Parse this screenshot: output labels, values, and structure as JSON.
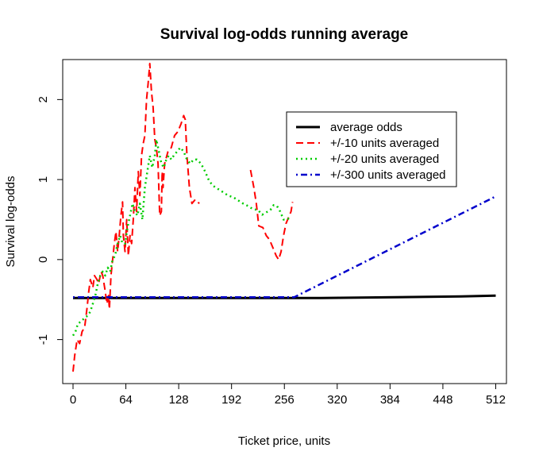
{
  "chart_data": {
    "type": "line",
    "title": "Survival log-odds running average",
    "xlabel": "Ticket price, units",
    "ylabel": "Survival log-odds",
    "xlim": [
      -12.5,
      525
    ],
    "ylim": [
      -1.55,
      2.5
    ],
    "x_ticks": [
      0,
      64,
      128,
      192,
      256,
      320,
      384,
      448,
      512
    ],
    "y_ticks": [
      -1,
      0,
      1,
      2
    ],
    "grid": false,
    "legend_position": "top-right",
    "series": [
      {
        "name": "average odds",
        "color": "#000000",
        "dash": "solid",
        "width": 3,
        "points": [
          [
            0,
            -0.48
          ],
          [
            300,
            -0.48
          ],
          [
            390,
            -0.47
          ],
          [
            470,
            -0.46
          ],
          [
            512,
            -0.45
          ]
        ]
      },
      {
        "name": "+/-10 units averaged",
        "color": "#ff0000",
        "dash": "dashed",
        "width": 2,
        "segments": [
          [
            [
              0,
              -1.4
            ],
            [
              2,
              -1.2
            ],
            [
              5,
              -1.0
            ],
            [
              8,
              -1.05
            ],
            [
              11,
              -0.9
            ],
            [
              14,
              -0.85
            ],
            [
              17,
              -0.6
            ],
            [
              19,
              -0.4
            ],
            [
              21,
              -0.25
            ],
            [
              24,
              -0.35
            ],
            [
              26,
              -0.2
            ],
            [
              29,
              -0.25
            ],
            [
              31,
              -0.3
            ],
            [
              34,
              -0.15
            ],
            [
              36,
              -0.2
            ],
            [
              39,
              -0.4
            ],
            [
              41,
              -0.55
            ],
            [
              43,
              -0.45
            ],
            [
              44,
              -0.62
            ],
            [
              46,
              -0.2
            ],
            [
              48,
              0.0
            ],
            [
              50,
              0.2
            ],
            [
              52,
              0.35
            ],
            [
              54,
              0.1
            ],
            [
              56,
              0.3
            ],
            [
              58,
              0.55
            ],
            [
              60,
              0.72
            ],
            [
              61,
              0.3
            ],
            [
              63,
              0.1
            ],
            [
              65,
              0.5
            ],
            [
              67,
              0.05
            ],
            [
              69,
              0.3
            ],
            [
              71,
              0.2
            ],
            [
              73,
              0.5
            ],
            [
              75,
              0.9
            ],
            [
              77,
              0.6
            ],
            [
              79,
              1.1
            ],
            [
              81,
              0.8
            ],
            [
              83,
              1.3
            ],
            [
              85,
              1.45
            ],
            [
              87,
              1.55
            ],
            [
              89,
              2.0
            ],
            [
              91,
              2.2
            ],
            [
              93,
              2.45
            ],
            [
              95,
              2.1
            ],
            [
              97,
              1.9
            ],
            [
              99,
              1.5
            ],
            [
              101,
              1.4
            ],
            [
              103,
              1.2
            ],
            [
              105,
              0.55
            ],
            [
              107,
              0.6
            ],
            [
              108,
              1.1
            ],
            [
              109,
              0.9
            ],
            [
              111,
              1.2
            ],
            [
              115,
              1.35
            ],
            [
              119,
              1.4
            ],
            [
              123,
              1.55
            ],
            [
              127,
              1.6
            ],
            [
              131,
              1.7
            ],
            [
              134,
              1.8
            ],
            [
              136,
              1.75
            ],
            [
              138,
              1.3
            ],
            [
              141,
              0.9
            ],
            [
              144,
              0.7
            ],
            [
              148,
              0.75
            ],
            [
              153,
              0.7
            ]
          ],
          [
            [
              215,
              1.12
            ],
            [
              219,
              0.9
            ],
            [
              222,
              0.7
            ],
            [
              225,
              0.42
            ],
            [
              230,
              0.4
            ],
            [
              234,
              0.3
            ],
            [
              238,
              0.25
            ],
            [
              242,
              0.15
            ],
            [
              246,
              0.05
            ],
            [
              249,
              0.0
            ],
            [
              252,
              0.1
            ],
            [
              255,
              0.3
            ],
            [
              258,
              0.45
            ],
            [
              262,
              0.55
            ],
            [
              264,
              0.6
            ],
            [
              266,
              0.72
            ]
          ]
        ]
      },
      {
        "name": "+/-20 units averaged",
        "color": "#00cc00",
        "dash": "dotted",
        "width": 2.5,
        "segments": [
          [
            [
              0,
              -0.95
            ],
            [
              3,
              -0.9
            ],
            [
              6,
              -0.8
            ],
            [
              9,
              -0.78
            ],
            [
              12,
              -0.75
            ],
            [
              15,
              -0.72
            ],
            [
              18,
              -0.7
            ],
            [
              21,
              -0.65
            ],
            [
              24,
              -0.55
            ],
            [
              27,
              -0.45
            ],
            [
              30,
              -0.3
            ],
            [
              33,
              -0.2
            ],
            [
              36,
              -0.15
            ],
            [
              39,
              -0.2
            ],
            [
              42,
              -0.1
            ],
            [
              45,
              -0.15
            ],
            [
              48,
              0.0
            ],
            [
              51,
              0.05
            ],
            [
              54,
              0.2
            ],
            [
              57,
              0.3
            ],
            [
              60,
              0.2
            ],
            [
              63,
              0.2
            ],
            [
              66,
              0.4
            ],
            [
              69,
              0.55
            ],
            [
              72,
              0.7
            ],
            [
              75,
              0.6
            ],
            [
              78,
              0.55
            ],
            [
              81,
              0.7
            ],
            [
              84,
              0.5
            ],
            [
              87,
              0.9
            ],
            [
              90,
              1.1
            ],
            [
              93,
              1.3
            ],
            [
              96,
              1.15
            ],
            [
              99,
              1.3
            ],
            [
              101,
              1.5
            ],
            [
              104,
              1.35
            ],
            [
              107,
              1.2
            ],
            [
              110,
              1.15
            ],
            [
              113,
              1.25
            ],
            [
              116,
              1.3
            ],
            [
              119,
              1.25
            ],
            [
              122,
              1.3
            ],
            [
              126,
              1.35
            ],
            [
              130,
              1.4
            ],
            [
              134,
              1.35
            ],
            [
              138,
              1.25
            ],
            [
              142,
              1.2
            ],
            [
              146,
              1.25
            ],
            [
              150,
              1.25
            ],
            [
              155,
              1.2
            ],
            [
              160,
              1.1
            ],
            [
              165,
              0.98
            ],
            [
              170,
              0.92
            ],
            [
              176,
              0.88
            ],
            [
              182,
              0.84
            ],
            [
              188,
              0.8
            ],
            [
              194,
              0.78
            ],
            [
              200,
              0.74
            ],
            [
              206,
              0.7
            ],
            [
              212,
              0.67
            ],
            [
              218,
              0.63
            ],
            [
              224,
              0.62
            ],
            [
              229,
              0.56
            ],
            [
              234,
              0.59
            ],
            [
              239,
              0.62
            ],
            [
              243,
              0.68
            ],
            [
              247,
              0.67
            ],
            [
              251,
              0.6
            ],
            [
              255,
              0.5
            ],
            [
              259,
              0.5
            ],
            [
              262,
              0.52
            ]
          ]
        ]
      },
      {
        "name": "+/-300 units averaged",
        "color": "#0000cc",
        "dash": "dashdot",
        "width": 2.5,
        "points": [
          [
            0,
            -0.47
          ],
          [
            268,
            -0.47
          ],
          [
            512,
            0.79
          ]
        ]
      }
    ]
  }
}
